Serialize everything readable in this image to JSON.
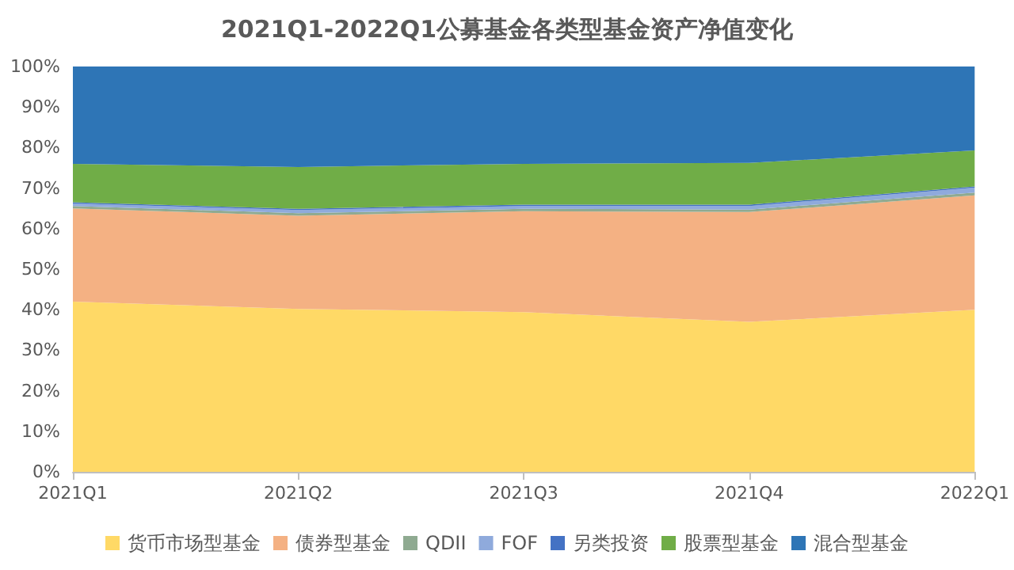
{
  "chart_data": {
    "type": "area",
    "stacked": true,
    "title": "2021Q1-2022Q1公募基金各类型基金资产净值变化",
    "categories": [
      "2021Q1",
      "2021Q2",
      "2021Q3",
      "2021Q4",
      "2022Q1"
    ],
    "series": [
      {
        "name": "货币市场型基金",
        "color": "#ffd966",
        "values": [
          42,
          40.2,
          39.4,
          37,
          40
        ]
      },
      {
        "name": "债券型基金",
        "color": "#f4b183",
        "values": [
          23,
          23,
          24.9,
          27.1,
          28.2
        ]
      },
      {
        "name": "QDII",
        "color": "#8faa91",
        "values": [
          0.6,
          0.6,
          0.6,
          0.6,
          0.7
        ]
      },
      {
        "name": "FOF",
        "color": "#8faadc",
        "values": [
          0.6,
          0.8,
          0.7,
          0.9,
          1.2
        ]
      },
      {
        "name": "另类投资",
        "color": "#4472c4",
        "values": [
          0.3,
          0.3,
          0.3,
          0.3,
          0.3
        ]
      },
      {
        "name": "股票型基金",
        "color": "#70ad47",
        "values": [
          9.5,
          10.3,
          10.1,
          10.3,
          8.9
        ]
      },
      {
        "name": "混合型基金",
        "color": "#2e75b6",
        "values": [
          24,
          24.8,
          24,
          23.8,
          20.7
        ]
      }
    ],
    "ylim": [
      0,
      100
    ],
    "yticks": [
      {
        "value": 0,
        "label": "0%"
      },
      {
        "value": 10,
        "label": "10%"
      },
      {
        "value": 20,
        "label": "20%"
      },
      {
        "value": 30,
        "label": "30%"
      },
      {
        "value": 40,
        "label": "40%"
      },
      {
        "value": 50,
        "label": "50%"
      },
      {
        "value": 60,
        "label": "60%"
      },
      {
        "value": 70,
        "label": "70%"
      },
      {
        "value": 80,
        "label": "80%"
      },
      {
        "value": 90,
        "label": "90%"
      },
      {
        "value": 100,
        "label": "100%"
      }
    ],
    "grid": false,
    "legend": "bottom"
  }
}
